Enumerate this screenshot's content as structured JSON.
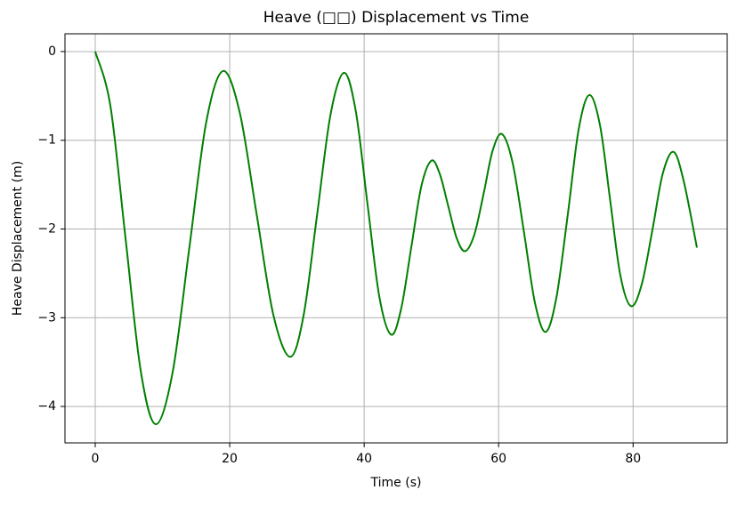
{
  "chart_data": {
    "type": "line",
    "title": "Heave (□□) Displacement vs Time",
    "xlabel": "Time (s)",
    "ylabel": "Heave Displacement (m)",
    "x": [
      0,
      2.25,
      4.5,
      6.75,
      9,
      11.5,
      14,
      16.5,
      19,
      21.5,
      24,
      26.5,
      29,
      31,
      33,
      35,
      37,
      38.75,
      40.5,
      42.25,
      44,
      45.5,
      47,
      48.5,
      50,
      51.25,
      52.5,
      53.75,
      55,
      56.4,
      57.8,
      59.1,
      60.5,
      62.1,
      63.8,
      65.4,
      67,
      68.6,
      70.3,
      71.9,
      73.5,
      75.1,
      76.6,
      78.1,
      79.7,
      81.3,
      82.9,
      84.4,
      86,
      87.5,
      89.5
    ],
    "series": [
      {
        "name": "Heave",
        "color": "#008000",
        "values": [
          0,
          -0.61,
          -2.1,
          -3.59,
          -4.2,
          -3.62,
          -2.21,
          -0.8,
          -0.22,
          -0.69,
          -1.83,
          -2.97,
          -3.44,
          -2.97,
          -1.84,
          -0.71,
          -0.24,
          -0.67,
          -1.72,
          -2.76,
          -3.19,
          -2.9,
          -2.21,
          -1.52,
          -1.23,
          -1.38,
          -1.74,
          -2.1,
          -2.25,
          -2.06,
          -1.59,
          -1.12,
          -0.93,
          -1.26,
          -2.05,
          -2.83,
          -3.16,
          -2.77,
          -1.83,
          -0.88,
          -0.49,
          -0.84,
          -1.68,
          -2.52,
          -2.87,
          -2.62,
          -2.0,
          -1.38,
          -1.13,
          -1.45,
          -2.21
        ]
      }
    ],
    "xlim": [
      -4.5,
      94
    ],
    "ylim": [
      -4.41,
      0.2
    ],
    "xticks": [
      0,
      20,
      40,
      60,
      80
    ],
    "yticks": [
      {
        "value": -4,
        "label": "−4"
      },
      {
        "value": -3,
        "label": "−3"
      },
      {
        "value": -2,
        "label": "−2"
      },
      {
        "value": -1,
        "label": "−1"
      },
      0
    ],
    "grid": true
  }
}
